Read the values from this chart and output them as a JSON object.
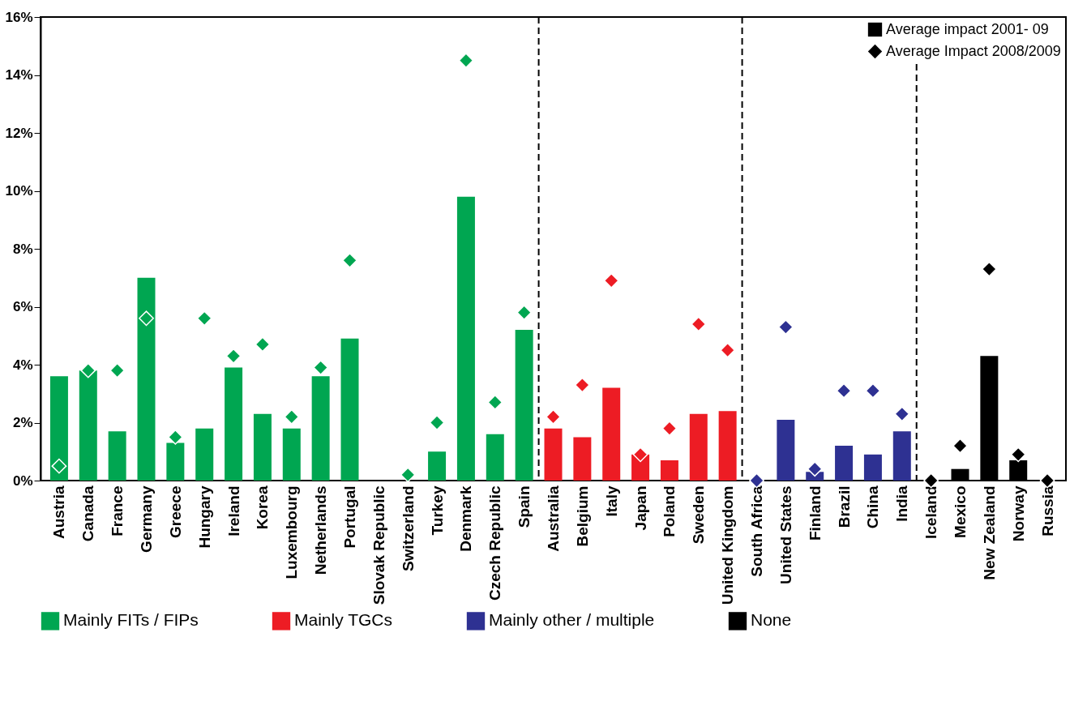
{
  "chart_data": {
    "type": "bar",
    "categories": [
      "Austria",
      "Canada",
      "France",
      "Germany",
      "Greece",
      "Hungary",
      "Ireland",
      "Korea",
      "Luxembourg",
      "Netherlands",
      "Portugal",
      "Slovak Republic",
      "Switzerland",
      "Turkey",
      "Denmark",
      "Czech Republic",
      "Spain",
      "Australia",
      "Belgium",
      "Italy",
      "Japan",
      "Poland",
      "Sweden",
      "United Kingdom",
      "South Africa",
      "United States",
      "Finland",
      "Brazil",
      "China",
      "India",
      "Iceland",
      "Mexico",
      "New Zealand",
      "Norway",
      "Russia"
    ],
    "series": [
      {
        "name": "Mainly FITs / FIPs",
        "color": "#00a651",
        "values": [
          3.6,
          3.8,
          1.7,
          7.0,
          1.3,
          1.8,
          3.9,
          2.3,
          1.8,
          3.6,
          4.9,
          null,
          null,
          1.0,
          9.8,
          1.6,
          5.2,
          null,
          null,
          null,
          null,
          null,
          null,
          null,
          null,
          null,
          null,
          null,
          null,
          null,
          null,
          null,
          null,
          null,
          null
        ]
      },
      {
        "name": "Mainly TGCs",
        "color": "#ed1c24",
        "values": [
          null,
          null,
          null,
          null,
          null,
          null,
          null,
          null,
          null,
          null,
          null,
          null,
          null,
          null,
          null,
          null,
          null,
          1.8,
          1.5,
          3.2,
          0.9,
          0.7,
          2.3,
          2.4,
          null,
          null,
          null,
          null,
          null,
          null,
          null,
          null,
          null,
          null,
          null
        ]
      },
      {
        "name": "Mainly other / multiple",
        "color": "#2e3192",
        "values": [
          null,
          null,
          null,
          null,
          null,
          null,
          null,
          null,
          null,
          null,
          null,
          null,
          null,
          null,
          null,
          null,
          null,
          null,
          null,
          null,
          null,
          null,
          null,
          null,
          null,
          2.1,
          0.3,
          1.2,
          0.9,
          1.7,
          null,
          null,
          null,
          null,
          null
        ]
      },
      {
        "name": "None",
        "color": "#000000",
        "values": [
          null,
          null,
          null,
          null,
          null,
          null,
          null,
          null,
          null,
          null,
          null,
          null,
          null,
          null,
          null,
          null,
          null,
          null,
          null,
          null,
          null,
          null,
          null,
          null,
          null,
          null,
          null,
          null,
          null,
          null,
          null,
          0.4,
          4.3,
          0.7,
          null
        ]
      },
      {
        "type": "scatter",
        "name": "Average Impact 2008/2009",
        "color": "#000000",
        "colors": [
          "#00a651",
          "#00a651",
          "#00a651",
          "#00a651",
          "#00a651",
          "#00a651",
          "#00a651",
          "#00a651",
          "#00a651",
          "#00a651",
          "#00a651",
          null,
          "#00a651",
          "#00a651",
          "#00a651",
          "#00a651",
          "#00a651",
          "#ed1c24",
          "#ed1c24",
          "#ed1c24",
          "#ed1c24",
          "#ed1c24",
          "#ed1c24",
          "#ed1c24",
          "#2e3192",
          "#2e3192",
          "#2e3192",
          "#2e3192",
          "#2e3192",
          "#2e3192",
          "#000000",
          "#000000",
          "#000000",
          "#000000",
          "#000000"
        ],
        "values": [
          0.5,
          3.8,
          3.8,
          5.6,
          1.5,
          5.6,
          4.3,
          4.7,
          2.2,
          3.9,
          7.6,
          null,
          0.2,
          2.0,
          14.5,
          2.7,
          5.8,
          2.2,
          3.3,
          6.9,
          0.9,
          1.8,
          5.4,
          4.5,
          0.0,
          5.3,
          0.4,
          3.1,
          3.1,
          2.3,
          0.0,
          1.2,
          7.3,
          0.9,
          0.0
        ]
      }
    ],
    "marker": "diamond",
    "ylim": [
      0,
      16
    ],
    "yticks": [
      {
        "value": 0,
        "label": "0%"
      },
      {
        "value": 2,
        "label": "2%"
      },
      {
        "value": 4,
        "label": "4%"
      },
      {
        "value": 6,
        "label": "6%"
      },
      {
        "value": 8,
        "label": "8%"
      },
      {
        "value": 10,
        "label": "10%"
      },
      {
        "value": 12,
        "label": "12%"
      },
      {
        "value": 14,
        "label": "14%"
      },
      {
        "value": 16,
        "label": "16%"
      }
    ],
    "grid": false,
    "legend": "bottom",
    "annotations": [
      "Average impact 2001- 09"
    ]
  }
}
